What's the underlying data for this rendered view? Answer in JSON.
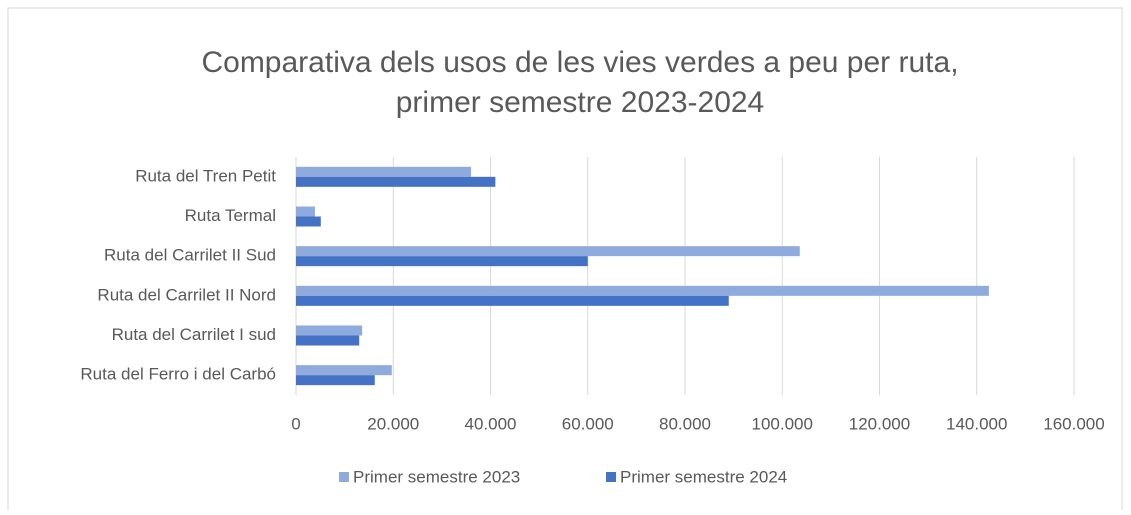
{
  "chart_data": {
    "type": "bar",
    "orientation": "horizontal",
    "title": [
      "Comparativa dels usos de les vies verdes a peu per ruta,",
      "primer semestre 2023-2024"
    ],
    "categories": [
      "Ruta del Tren Petit",
      "Ruta Termal",
      "Ruta del Carrilet II Sud",
      "Ruta del Carrilet II Nord",
      "Ruta del Carrilet I sud",
      "Ruta del Ferro i del Carbó"
    ],
    "series": [
      {
        "name": "Primer semestre 2023",
        "color": "#8faadc",
        "values": [
          36000,
          3900,
          103600,
          142500,
          13600,
          19700
        ]
      },
      {
        "name": "Primer semestre 2024",
        "color": "#4472c4",
        "values": [
          41000,
          5100,
          60000,
          89000,
          13000,
          16200
        ]
      }
    ],
    "xlim": [
      0,
      160000
    ],
    "xticks": [
      0,
      {
        "value": 20000,
        "label": "20.000"
      },
      {
        "value": 40000,
        "label": "40.000"
      },
      {
        "value": 60000,
        "label": "60.000"
      },
      {
        "value": 80000,
        "label": "80.000"
      },
      {
        "value": 100000,
        "label": "100.000"
      },
      {
        "value": 120000,
        "label": "120.000"
      },
      {
        "value": 140000,
        "label": "140.000"
      },
      {
        "value": 160000,
        "label": "160.000"
      }
    ],
    "grid": true,
    "legend": "bottom"
  }
}
